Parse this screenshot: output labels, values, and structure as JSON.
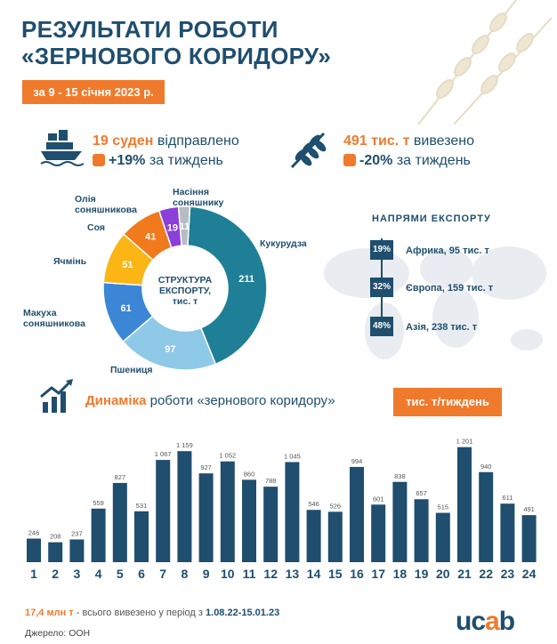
{
  "header": {
    "title_line1": "РЕЗУЛЬТАТИ РОБОТИ",
    "title_line2": "«ЗЕРНОВОГО КОРИДОРУ»",
    "date_range": "за 9 - 15 січня 2023 р."
  },
  "stats": {
    "ships_count": "19 суден",
    "ships_label": "відправлено",
    "ships_change": "+19%",
    "ships_change_label": "за тиждень",
    "volume_count": "491 тис. т",
    "volume_label": "вивезено",
    "volume_change": "-20%",
    "volume_change_label": "за тиждень"
  },
  "donut": {
    "center_label": "СТРУКТУРА ЕКСПОРТУ,",
    "center_unit": "тис. т",
    "segments": [
      {
        "name": "Кукурудза",
        "value": 211,
        "color": "#1f7f96"
      },
      {
        "name": "Пшениця",
        "value": 97,
        "color": "#8ec9e8"
      },
      {
        "name": "Макуха соняшникова",
        "value": 61,
        "color": "#3b87d6"
      },
      {
        "name": "Ячмінь",
        "value": 51,
        "color": "#fbb515"
      },
      {
        "name": "Соя",
        "value": 41,
        "color": "#f07a1c"
      },
      {
        "name": "Олія соняшникова",
        "value": 19,
        "color": "#8a3fd8"
      },
      {
        "name": "Насіння соняшнику",
        "value": 11,
        "color": "#b5bcc4"
      }
    ]
  },
  "export_directions": {
    "title": "НАПРЯМИ ЕКСПОРТУ",
    "items": [
      {
        "pct": "19%",
        "label": "Африка, 95 тис. т"
      },
      {
        "pct": "32%",
        "label": "Європа, 159 тис. т"
      },
      {
        "pct": "48%",
        "label": "Азія, 238 тис. т"
      }
    ]
  },
  "dynamics": {
    "title_highlight": "Динаміка",
    "title_rest": "роботи «зернового коридору»",
    "unit": "тис. т/тиждень"
  },
  "chart_data": {
    "type": "bar",
    "categories": [
      "1",
      "2",
      "3",
      "4",
      "5",
      "6",
      "7",
      "8",
      "9",
      "10",
      "11",
      "12",
      "13",
      "14",
      "15",
      "16",
      "17",
      "18",
      "19",
      "20",
      "21",
      "22",
      "23",
      "24"
    ],
    "values": [
      246,
      208,
      237,
      559,
      827,
      531,
      1067,
      1159,
      927,
      1052,
      860,
      788,
      1045,
      546,
      526,
      994,
      601,
      838,
      657,
      515,
      1201,
      940,
      611,
      491
    ],
    "value_labels": [
      "246",
      "208",
      "237",
      "559",
      "827",
      "531",
      "1 067",
      "1 159",
      "927",
      "1 052",
      "860",
      "788",
      "1 045",
      "546",
      "526",
      "994",
      "601",
      "838",
      "657",
      "515",
      "1 201",
      "940",
      "611",
      "491"
    ],
    "bar_color": "#1f4e6e",
    "ylim": [
      0,
      1300
    ]
  },
  "footer": {
    "total_highlight": "17,4 млн т",
    "total_mid": "- всього вивезено у період з",
    "total_period": "1.08.22-15.01.23",
    "source": "Джерело: ООН",
    "logo_left": "uc",
    "logo_o": "a",
    "logo_right": "b"
  }
}
